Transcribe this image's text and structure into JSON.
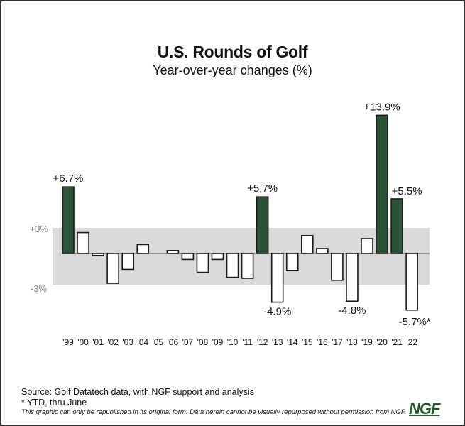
{
  "chart_data": {
    "type": "bar",
    "title": "U.S. Rounds of Golf",
    "subtitle": "Year-over-year changes (%)",
    "xlabel": "",
    "ylabel": "",
    "categories": [
      "'99",
      "'00",
      "'01",
      "'02",
      "'03",
      "'04",
      "'05",
      "'06",
      "'07",
      "'08",
      "'09",
      "'10",
      "'11",
      "'12",
      "'13",
      "'14",
      "'15",
      "'16",
      "'17",
      "'18",
      "'19",
      "'20",
      "'21",
      "'22"
    ],
    "values": [
      6.7,
      2.1,
      -0.2,
      -3.0,
      -1.6,
      0.9,
      0.0,
      0.3,
      -0.6,
      -1.9,
      -0.6,
      -2.4,
      -2.5,
      5.7,
      -4.9,
      -1.7,
      1.8,
      0.5,
      -2.7,
      -4.8,
      1.5,
      13.9,
      5.5,
      -5.7
    ],
    "highlight": [
      true,
      false,
      false,
      false,
      false,
      false,
      false,
      false,
      false,
      false,
      false,
      false,
      false,
      true,
      false,
      false,
      false,
      false,
      false,
      false,
      false,
      true,
      true,
      false
    ],
    "data_labels": [
      {
        "index": 0,
        "text": "+6.7%"
      },
      {
        "index": 13,
        "text": "+5.7%"
      },
      {
        "index": 14,
        "text": "-4.9%"
      },
      {
        "index": 19,
        "text": "-4.8%"
      },
      {
        "index": 21,
        "text": "+13.9%"
      },
      {
        "index": 22,
        "text": "+5.5%"
      },
      {
        "index": 23,
        "text": "-5.7%*"
      }
    ],
    "band": {
      "upper": 3,
      "lower": -3,
      "upper_label": "+3%",
      "lower_label": "-3%"
    },
    "ylim": [
      -6,
      15
    ],
    "grid": false,
    "legend": "none",
    "colors": {
      "highlight": "#2b5234",
      "normal": "#ffffff",
      "band": "#d9d9d9",
      "stroke": "#1a1a1a"
    }
  },
  "footer": {
    "source": "Source: Golf Datatech data, with NGF support and analysis",
    "ytd_note": "* YTD, thru June",
    "disclaimer": "This graphic can only be republished in its original form. Data herein cannot be visually repurposed without permission from NGF.",
    "logo": "NGF"
  }
}
